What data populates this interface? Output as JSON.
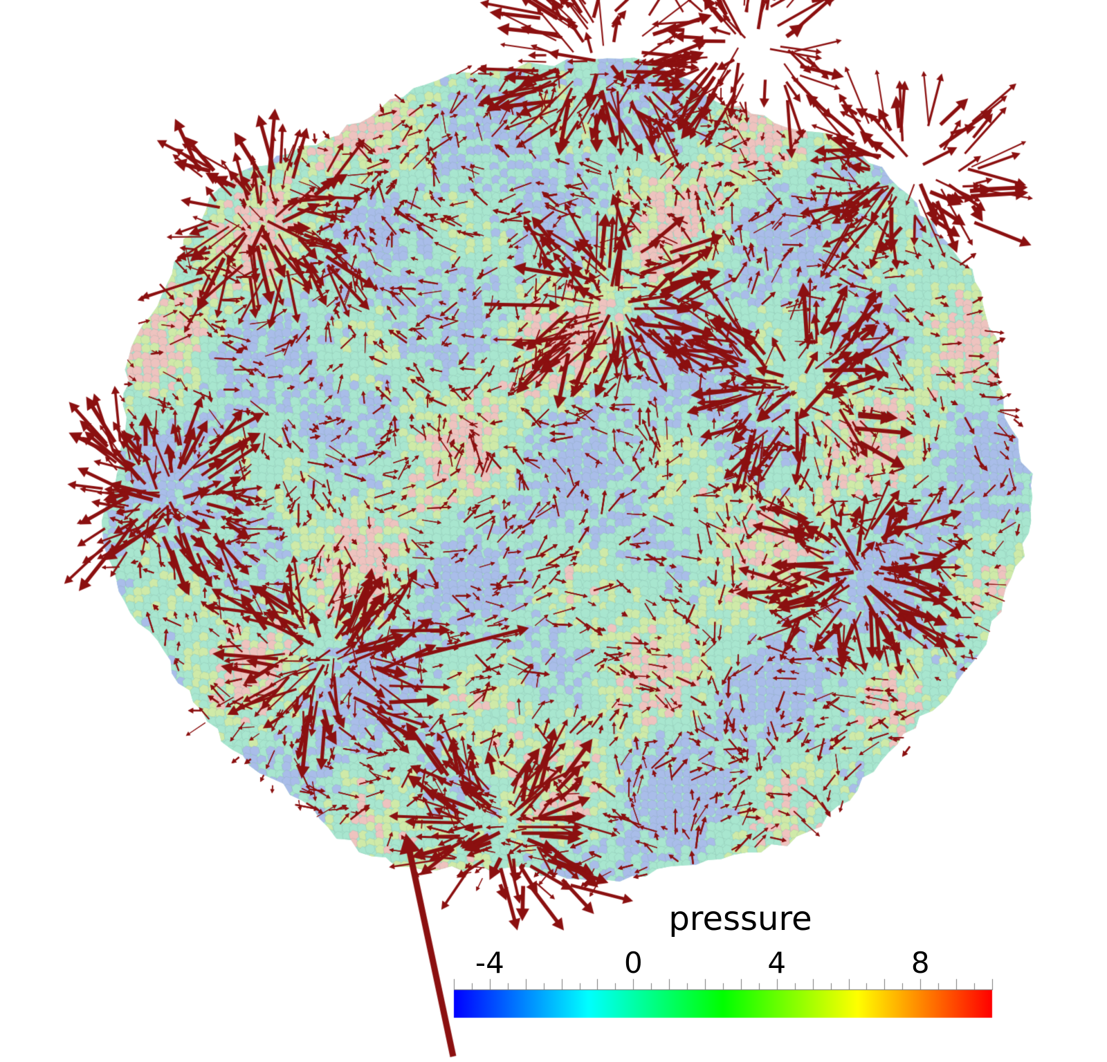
{
  "colorbar": {
    "title": "pressure",
    "range": [
      -5,
      10
    ],
    "tick_labels": [
      "-4",
      "0",
      "4",
      "8"
    ],
    "tick_values": [
      -4,
      0,
      4,
      8
    ],
    "colormap": [
      "#0000ff",
      "#00ffff",
      "#00ff00",
      "#ffff00",
      "#ff0000"
    ]
  },
  "colors": {
    "arrow": "#8b1010",
    "cell_low": "#a9bde9",
    "cell_mid": "#a8e6cf",
    "cell_midhigh": "#cfeaa8",
    "cell_high": "#eec3bf",
    "cell_edge": "#6f8f8c"
  }
}
